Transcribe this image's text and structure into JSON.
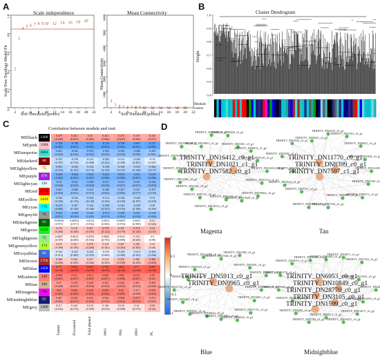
{
  "panels": {
    "A": {
      "label": "A",
      "scale_free": {
        "title": "Scale independence",
        "xlabel": "Soft Threshold (power)",
        "ylabel": "Scale Free Topology Model Fit",
        "xticks": [
          "2",
          "4",
          "6",
          "8",
          "10",
          "12",
          "14",
          "16",
          "18",
          "20",
          "22"
        ],
        "yticks": [
          "1.0",
          "0.8",
          "0.6",
          "0.4",
          "0.2",
          "0.0"
        ],
        "points": [
          {
            "x": 1,
            "y": 0.05
          },
          {
            "x": 2,
            "y": 0.42
          },
          {
            "x": 3,
            "y": 0.75
          },
          {
            "x": 4,
            "y": 0.86
          },
          {
            "x": 5,
            "y": 0.88
          },
          {
            "x": 6,
            "y": 0.89
          },
          {
            "x": 7,
            "y": 0.9
          },
          {
            "x": 8,
            "y": 0.91
          },
          {
            "x": 9,
            "y": 0.91
          },
          {
            "x": 10,
            "y": 0.91
          },
          {
            "x": 12,
            "y": 0.91
          },
          {
            "x": 14,
            "y": 0.92
          },
          {
            "x": 16,
            "y": 0.92
          },
          {
            "x": 18,
            "y": 0.93
          },
          {
            "x": 20,
            "y": 0.94
          }
        ],
        "threshold_line": 0.85,
        "ylim": [
          0,
          1
        ],
        "xlim": [
          1,
          22
        ]
      },
      "connectivity": {
        "title": "Mean Connectivity",
        "xlabel": "Soft Threshold (power)",
        "ylabel": "Mean Connectivity",
        "xticks": [
          "2",
          "4",
          "6",
          "8",
          "10",
          "12",
          "14",
          "16",
          "18",
          "20",
          "22"
        ],
        "yticks": [
          "6000",
          "5000",
          "4000",
          "3000",
          "2000",
          "1000",
          "0"
        ],
        "points": [
          {
            "x": 1,
            "y": 1100
          },
          {
            "x": 2,
            "y": 450
          },
          {
            "x": 3,
            "y": 200
          },
          {
            "x": 4,
            "y": 110
          },
          {
            "x": 5,
            "y": 70
          },
          {
            "x": 6,
            "y": 45
          },
          {
            "x": 7,
            "y": 30
          },
          {
            "x": 8,
            "y": 20
          },
          {
            "x": 9,
            "y": 14
          },
          {
            "x": 10,
            "y": 10
          },
          {
            "x": 12,
            "y": 6
          },
          {
            "x": 14,
            "y": 4
          },
          {
            "x": 16,
            "y": 3
          },
          {
            "x": 18,
            "y": 2
          },
          {
            "x": 20,
            "y": 1
          }
        ],
        "ylim": [
          0,
          6000
        ],
        "xlim": [
          1,
          22
        ]
      }
    },
    "B": {
      "label": "B",
      "title": "Cluster Dendrogram",
      "ylabel": "Height",
      "module_label": "Module colors",
      "yticks": [
        "1.0",
        "0.9",
        "0.8",
        "0.7",
        "0.6",
        "0.5",
        "0.4"
      ],
      "module_colors": [
        "#1aa7a7",
        "#3fb8b8",
        "#000000",
        "#2a2a8a",
        "#00c7c7",
        "#5e5e5e",
        "#00a000",
        "#ff00ff",
        "#1ac0c0",
        "#00008b",
        "#a52a2a",
        "#00bcd4",
        "#40e0d0",
        "#ff0000",
        "#0000ff",
        "#00ced1",
        "#191970",
        "#87ceeb"
      ]
    },
    "C": {
      "label": "C",
      "title": "Correlation between module and trait",
      "traits": [
        "Tannin",
        "Flavonoid",
        "Total phenol",
        "PPO",
        "PAL",
        "PPO",
        "PL"
      ],
      "colorbar_ticks": [
        "1",
        "0.5",
        "0",
        "-0.5",
        "-1"
      ],
      "modules": [
        {
          "name": "MEblack",
          "count": "1200",
          "color": "#000000",
          "vals": [
            "0.479",
            "0.461",
            "0.45",
            "0.441",
            "0.473",
            "0.419",
            "0.436"
          ],
          "ps": [
            "(0.049)",
            "(0.055)",
            "(0.061)",
            "(0.066)",
            "(0.047)",
            "(0.084)",
            "(0.071)"
          ]
        },
        {
          "name": "MEpink",
          "count": "1184",
          "color": "#ffc0cb",
          "vals": [
            "-0.709",
            "-0.708",
            "-0.712",
            "-0.722",
            "-0.708",
            "-0.697",
            "-0.725"
          ],
          "ps": [
            "(0.001)",
            "(0.001)",
            "(0.001)",
            "(0.001)",
            "(0.001)",
            "(0.001)",
            "(0.001)"
          ]
        },
        {
          "name": "MEturquoise",
          "count": "3001",
          "color": "#40e0d0",
          "vals": [
            "-0.481",
            "-0.502",
            "-0.533",
            "-0.502",
            "-0.503",
            "-0.496",
            "-0.450"
          ],
          "ps": [
            "(0.043)",
            "(0.034)",
            "(0.023)",
            "(0.034)",
            "(0.033)",
            "(0.036)",
            "(0.061)"
          ]
        },
        {
          "name": "MEdarkred",
          "count": "68",
          "color": "#8b0000",
          "vals": [
            "-0.255",
            "-0.250",
            "-0.212",
            "-0.302",
            "-0.212",
            "-0.269",
            "-0.14"
          ],
          "ps": [
            "(0.307)",
            "(0.316)",
            "(0.398)",
            "(0.222)",
            "(0.398)",
            "(0.281)",
            "(0.587)"
          ]
        },
        {
          "name": "MElightyellow",
          "count": "75",
          "color": "#ffffe0",
          "vals": [
            "-0.381",
            "-0.356",
            "-0.334",
            "-0.358",
            "-0.356",
            "-0.355",
            "-0.364"
          ],
          "ps": [
            "(0.119)",
            "(0.147)",
            "(0.175)",
            "(0.145)",
            "(0.147)",
            "(0.148)",
            "(0.137)"
          ]
        },
        {
          "name": "MEpurple",
          "count": "678",
          "color": "#a020f0",
          "vals": [
            "-0.630",
            "-0.626",
            "-0.614",
            "-0.623",
            "-0.631",
            "-0.611",
            "-0.619"
          ],
          "ps": [
            "(0.005)",
            "(0.005)",
            "(0.007)",
            "(0.006)",
            "(0.005)",
            "(0.007)",
            "(0.006)"
          ]
        },
        {
          "name": "MElightcyan",
          "count": "126",
          "color": "#e0ffff",
          "vals": [
            "-0.52",
            "-0.541",
            "-0.549",
            "-0.557",
            "-0.521",
            "-0.521",
            "-0.544"
          ],
          "ps": [
            "(0.026)",
            "(0.020)",
            "(0.018)",
            "(0.016)",
            "(0.027)",
            "(0.027)",
            "(0.019)"
          ]
        },
        {
          "name": "MEred",
          "count": "1035",
          "color": "#ff0000",
          "vals": [
            "-0.467",
            "-0.466",
            "-0.433",
            "-0.448",
            "-0.447",
            "-0.427",
            "-0.397"
          ],
          "ps": [
            "(0.050)",
            "(0.051)",
            "(0.073)",
            "(0.062)",
            "(0.063)",
            "(0.077)",
            "(0.103)"
          ]
        },
        {
          "name": "MEyellow",
          "count": "3419",
          "color": "#ffff00",
          "vals": [
            "-0.326",
            "-0.334",
            "-0.354",
            "-0.314",
            "-0.328",
            "-0.326",
            "-0.31"
          ],
          "ps": [
            "(0.186)",
            "(0.176)",
            "(0.149)",
            "(0.204)",
            "(0.184)",
            "(0.187)",
            "(0.210)"
          ]
        },
        {
          "name": "MEcyan",
          "count": "770",
          "color": "#00ffff",
          "vals": [
            "-0.419",
            "-0.357",
            "-0.326",
            "-0.399",
            "-0.343",
            "-0.339",
            "-0.28"
          ],
          "ps": [
            "(0.084)",
            "(0.146)",
            "(0.186)",
            "(0.101)",
            "(0.163)",
            "(0.169)",
            "(0.260)"
          ]
        },
        {
          "name": "MEgrey60",
          "count": "76",
          "color": "#999999",
          "vals": [
            "-0.581",
            "-0.558",
            "-0.526",
            "-0.574",
            "-0.558",
            "-0.551",
            "-0.518"
          ],
          "ps": [
            "(0.011)",
            "(0.016)",
            "(0.025)",
            "(0.013)",
            "(0.016)",
            "(0.018)",
            "(0.028)"
          ]
        },
        {
          "name": "MEdarkgreen",
          "count": "93",
          "color": "#006400",
          "vals": [
            "-0.00939",
            "0.00934",
            "0.0154",
            "0.0054",
            "0.00837",
            "0.0035",
            "0.16"
          ],
          "ps": [
            "(0.971)",
            "(0.971)",
            "(0.952)",
            "(0.983)",
            "(0.974)",
            "(0.989)",
            "(0.526)"
          ]
        },
        {
          "name": "MEgreen",
          "count": "1420",
          "color": "#00ff00",
          "vals": [
            "0.276",
            "0.276",
            "0.327",
            "0.378",
            "0.331",
            "0.374",
            "0.34"
          ],
          "ps": [
            "(0.268)",
            "(0.268)",
            "(0.185)",
            "(0.122)",
            "(0.179)",
            "(0.126)",
            "(0.167)"
          ]
        },
        {
          "name": "MElightgreen",
          "count": "75",
          "color": "#90ee90",
          "vals": [
            "0.0687",
            "0.0614",
            "0.0763",
            "0.0665",
            "0.0322",
            "0.133",
            "0.0"
          ],
          "ps": [
            "(0.787)",
            "(0.809)",
            "(0.763)",
            "(0.793)",
            "(0.899)",
            "(0.600)",
            "(0.99)"
          ]
        },
        {
          "name": "MEgreenyellow",
          "count": "174",
          "color": "#adff2f",
          "vals": [
            "0.225",
            "0.231",
            "0.276",
            "0.219",
            "0.267",
            "0.256",
            "0.18"
          ],
          "ps": [
            "(0.369)",
            "(0.356)",
            "(0.268)",
            "(0.382)",
            "(0.284)",
            "(0.305)",
            "(0.46)"
          ]
        },
        {
          "name": "MEroyalblue",
          "count": "66",
          "color": "#4169e1",
          "vals": [
            "-0.164",
            "-0.225",
            "-0.222",
            "-0.103",
            "-0.220",
            "-0.214",
            "-0.260"
          ],
          "ps": [
            "(0.515)",
            "(0.369)",
            "(0.376)",
            "(0.684)",
            "(0.380)",
            "(0.394)",
            "(0.296)"
          ]
        },
        {
          "name": "MEbrown",
          "count": "1750",
          "color": "#a52a2a",
          "vals": [
            "0.268",
            "0.256",
            "0.257",
            "0.214",
            "0.325",
            "0.286",
            "0.406"
          ],
          "ps": [
            "(0.283)",
            "(0.305)",
            "(0.304)",
            "(0.393)",
            "(0.189)",
            "(0.250)",
            "(0.094)"
          ]
        },
        {
          "name": "MEblue",
          "count": "3459",
          "color": "#0000ff",
          "vals": [
            "0.771",
            "0.825",
            "0.825",
            "0.793",
            "0.813",
            "0.77",
            "0.807"
          ],
          "ps": [
            "(2e-04)",
            "(3e-05)",
            "(3e-05)",
            "(9e-05)",
            "(4e-05)",
            "(2e-04)",
            "(5e-05)"
          ]
        },
        {
          "name": "MEsalmon",
          "count": "149",
          "color": "#fa8072",
          "vals": [
            "0.608",
            "0.611",
            "0.612",
            "0.609",
            "0.605",
            "0.613",
            "0.58"
          ],
          "ps": [
            "(0.007)",
            "(0.007)",
            "(0.007)",
            "(0.007)",
            "(0.008)",
            "(0.007)",
            "(0.01)"
          ]
        },
        {
          "name": "MEtan",
          "count": "160",
          "color": "#d2b48c",
          "vals": [
            "0.47",
            "0.519",
            "0.528",
            "0.502",
            "0.545",
            "0.465",
            "0.499"
          ],
          "ps": [
            "(0.049)",
            "(0.027)",
            "(0.024)",
            "(0.034)",
            "(0.019)",
            "(0.052)",
            "(0.035)"
          ]
        },
        {
          "name": "MEmagenta",
          "count": "796",
          "color": "#ff00ff",
          "vals": [
            "0.61",
            "0.629",
            "0.629",
            "0.645",
            "0.63",
            "0.471",
            "0.558"
          ],
          "ps": [
            "(0.007)",
            "(0.005)",
            "(0.005)",
            "(0.004)",
            "(0.005)",
            "(0.048)",
            "(0.016)"
          ]
        },
        {
          "name": "MEmidnightblue",
          "count": "97",
          "color": "#191970",
          "vals": [
            "0.467",
            "0.555",
            "0.533",
            "0.504",
            "0.568",
            "0.573",
            "0.474"
          ],
          "ps": [
            "(0.051)",
            "(0.017)",
            "(0.023)",
            "(0.033)",
            "(0.014)",
            "(0.013)",
            "(0.047)"
          ]
        },
        {
          "name": "MEgrey",
          "count": "1300",
          "color": "#bebebe",
          "vals": [
            "0.117",
            "0.142",
            "0.133",
            "0.126",
            "0.133",
            "0.14",
            "0.29"
          ],
          "ps": [
            "(0.643)",
            "(0.574)",
            "(0.599)",
            "(0.618)",
            "(0.598)",
            "(0.579)",
            "(0.24)"
          ]
        }
      ]
    },
    "D": {
      "label": "D",
      "networks": [
        {
          "name": "Magenta",
          "hubs": [
            "TRINITY_DN16412_c0_g1",
            "TRINITY_DN1021_c1_g1",
            "TRINITY_DN7582_c0_g1"
          ],
          "small": [
            "TRINITY_DN12016_c0_g1",
            "TRINITY_DN11113_c0_g1",
            "TRINITY_DN19662_c0_g1",
            "TRINITY_DN15929_c0_g1",
            "TRINITY_DN4158_c0_g1",
            "TRINITY_DN14553_c0_g1",
            "TRINITY_DN7731_c0_g1",
            "TRINITY_DN1441_c0_g1",
            "TRINITY_DN12281_c0_g1",
            "TRINITY_DN2296_c0_g1",
            "TRINITY_DN7611_c0_g1",
            "TRINITY_DN3516_c0_g1",
            "TRINITY_DN10961_c0_g1",
            "TRINITY_DN9539_c0_g1",
            "TRINITY_DN8820_c0_g1",
            "TRINITY_DN1552_c0_g1",
            "TRINITY_DN6674_c0_g1",
            "TRINITY_DN3318_c0_g1"
          ]
        },
        {
          "name": "Tan",
          "hubs": [
            "TRINITY_DN11770_c0_g1",
            "TRINITY_DN8399_c0_g1",
            "TRINITY_DN7597_c1_g1"
          ],
          "small": [
            "TRINITY_DN12295_c0_g1",
            "TRINITY_DN5330_c0_g1",
            "TRINITY_DN6572_c0_g1",
            "TRINITY_DN9847_c0_g1",
            "TRINITY_DN1534_c0_g1",
            "TRINITY_DN10961_c0_g1",
            "TRINITY_DN7731_c0_g1",
            "TRINITY_DN3512_c0_g1",
            "TRINITY_DN2596_c0_g1",
            "TRINITY_DN5539_c0_g1",
            "TRINITY_DN3842_c0_g1",
            "TRINITY_DN8341_c0_g1",
            "TRINITY_DN4165_c0_g1",
            "TRINITY_DN2181_c0_g1",
            "TRINITY_DN6021_c0_g1",
            "TRINITY_DN1944_c0_g1"
          ]
        },
        {
          "name": "Blue",
          "hubs": [
            "TRINITY_DN5913_c0_g1",
            "TRINITY_DN9965_c0_g1"
          ],
          "small": [
            "TRINITY_DN13063_c0_g1",
            "TRINITY_DN2667_c0_g1",
            "TRINITY_DN11751_c0_g1",
            "TRINITY_DN6634_c0_g1",
            "TRINITY_DN14061_c0_g1",
            "TRINITY_DN10824_c0_g1",
            "TRINITY_DN5932_c0_g1",
            "TRINITY_DN4467_c0_g1",
            "TRINITY_DN21722_c0_g1",
            "TRINITY_DN7186_c0_g1",
            "TRINITY_DN9310_c0_g1",
            "TRINITY_DN14288_c0_g1",
            "TRINITY_DN5540_c0_g1",
            "TRINITY_DN1883_c0_g1",
            "TRINITY_DN3401_c0_g1",
            "TRINITY_DN8017_c0_g1"
          ]
        },
        {
          "name": "Midnightblue",
          "hubs": [
            "TRINITY_DN6953_c0_g1",
            "TRINITY_DN10849_c0_g1",
            "TRINITY_DN28770_c0_g1",
            "TRINITY_DN3105_c0_g1",
            "TRINITY_DN1599_c0_g1"
          ],
          "small": [
            "TRINITY_DN2839_c0_g1",
            "TRINITY_DN14250_c0_g1",
            "TRINITY_DN12871_c0_g1",
            "TRINITY_DN10472_c0_g1",
            "TRINITY_DN8112_c0_g1",
            "TRINITY_DN7784_c0_g1",
            "TRINITY_DN5263_c0_g1",
            "TRINITY_DN2254_c0_g1",
            "TRINITY_DN9366_c0_g1",
            "TRINITY_DN1176_c0_g1",
            "TRINITY_DN4019_c0_g1",
            "TRINITY_DN12345_c0_g1",
            "TRINITY_DN6402_c0_g1",
            "TRINITY_DN3071_c0_g1",
            "TRINITY_DN7452_c0_g1",
            "TRINITY_DN11035_c0_g1"
          ]
        }
      ]
    }
  }
}
